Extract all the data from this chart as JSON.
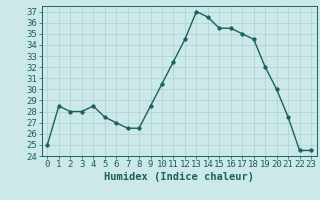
{
  "x": [
    0,
    1,
    2,
    3,
    4,
    5,
    6,
    7,
    8,
    9,
    10,
    11,
    12,
    13,
    14,
    15,
    16,
    17,
    18,
    19,
    20,
    21,
    22,
    23
  ],
  "y": [
    25,
    28.5,
    28,
    28,
    28.5,
    27.5,
    27,
    26.5,
    26.5,
    28.5,
    30.5,
    32.5,
    34.5,
    37,
    36.5,
    35.5,
    35.5,
    35,
    34.5,
    32,
    30,
    27.5,
    24.5,
    24.5
  ],
  "line_color": "#1a6060",
  "marker_color": "#1a6060",
  "bg_color": "#cce8e8",
  "grid_color": "#aad0d0",
  "xlabel": "Humidex (Indice chaleur)",
  "ylim": [
    24,
    37.5
  ],
  "xlim": [
    -0.5,
    23.5
  ],
  "yticks": [
    24,
    25,
    26,
    27,
    28,
    29,
    30,
    31,
    32,
    33,
    34,
    35,
    36,
    37
  ],
  "xticks": [
    0,
    1,
    2,
    3,
    4,
    5,
    6,
    7,
    8,
    9,
    10,
    11,
    12,
    13,
    14,
    15,
    16,
    17,
    18,
    19,
    20,
    21,
    22,
    23
  ],
  "tick_fontsize": 6.5,
  "xlabel_fontsize": 7.5,
  "line_width": 1.0,
  "marker_size": 2.5
}
